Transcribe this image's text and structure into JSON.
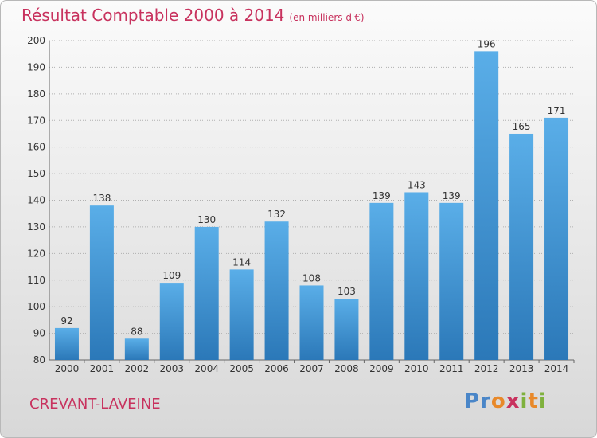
{
  "page": {
    "title": "Résultat Comptable 2000 à 2014",
    "unit": "(en milliers d'€)",
    "commune": "CREVANT-LAVEINE",
    "logo": "Proxiti"
  },
  "colors": {
    "title": "#c8325e",
    "bar_top": "#5aaee8",
    "bar_bottom": "#2b78b8",
    "grid": "#b0b0b0"
  },
  "chart_data": {
    "type": "bar",
    "title": "Résultat Comptable 2000 à 2014",
    "subtitle": "(en milliers d'€)",
    "xlabel": "",
    "ylabel": "",
    "categories": [
      "2000",
      "2001",
      "2002",
      "2003",
      "2004",
      "2005",
      "2006",
      "2007",
      "2008",
      "2009",
      "2010",
      "2011",
      "2012",
      "2013",
      "2014"
    ],
    "values": [
      92,
      138,
      88,
      109,
      130,
      114,
      132,
      108,
      103,
      139,
      143,
      139,
      196,
      165,
      171
    ],
    "ylim": [
      80,
      200
    ],
    "yticks": [
      80,
      90,
      100,
      110,
      120,
      130,
      140,
      150,
      160,
      170,
      180,
      190,
      200
    ],
    "grid": true,
    "data_labels": true
  }
}
